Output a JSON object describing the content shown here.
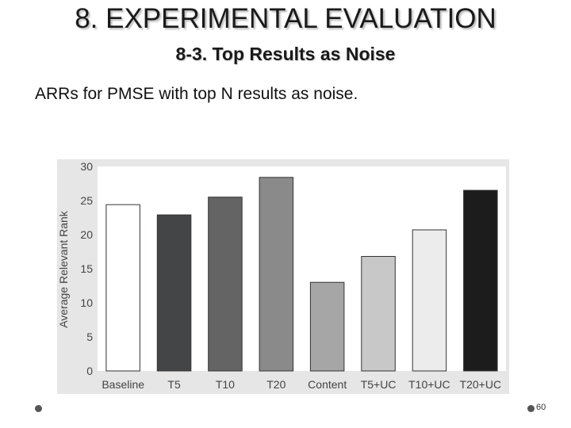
{
  "slide": {
    "title": "8. EXPERIMENTAL EVALUATION",
    "subtitle": "8-3. Top Results as Noise",
    "body_text": "ARRs for PMSE with top N results as noise.",
    "page_number": "60"
  },
  "chart_data": {
    "type": "bar",
    "title": "",
    "xlabel": "",
    "ylabel": "Average Relevant Rank",
    "ylim": [
      0,
      30
    ],
    "yticks": [
      0,
      5,
      10,
      15,
      20,
      25,
      30
    ],
    "categories": [
      "Baseline",
      "T5",
      "T10",
      "T20",
      "Content",
      "T5+UC",
      "T10+UC",
      "T20+UC"
    ],
    "values": [
      24.4,
      22.9,
      25.5,
      28.4,
      13.0,
      16.8,
      20.7,
      26.5
    ],
    "colors": [
      "#ffffff",
      "#444546",
      "#646464",
      "#8a8a8a",
      "#a6a6a6",
      "#c8c8c8",
      "#ececec",
      "#1c1c1c"
    ],
    "grid": false,
    "legend": "none"
  }
}
